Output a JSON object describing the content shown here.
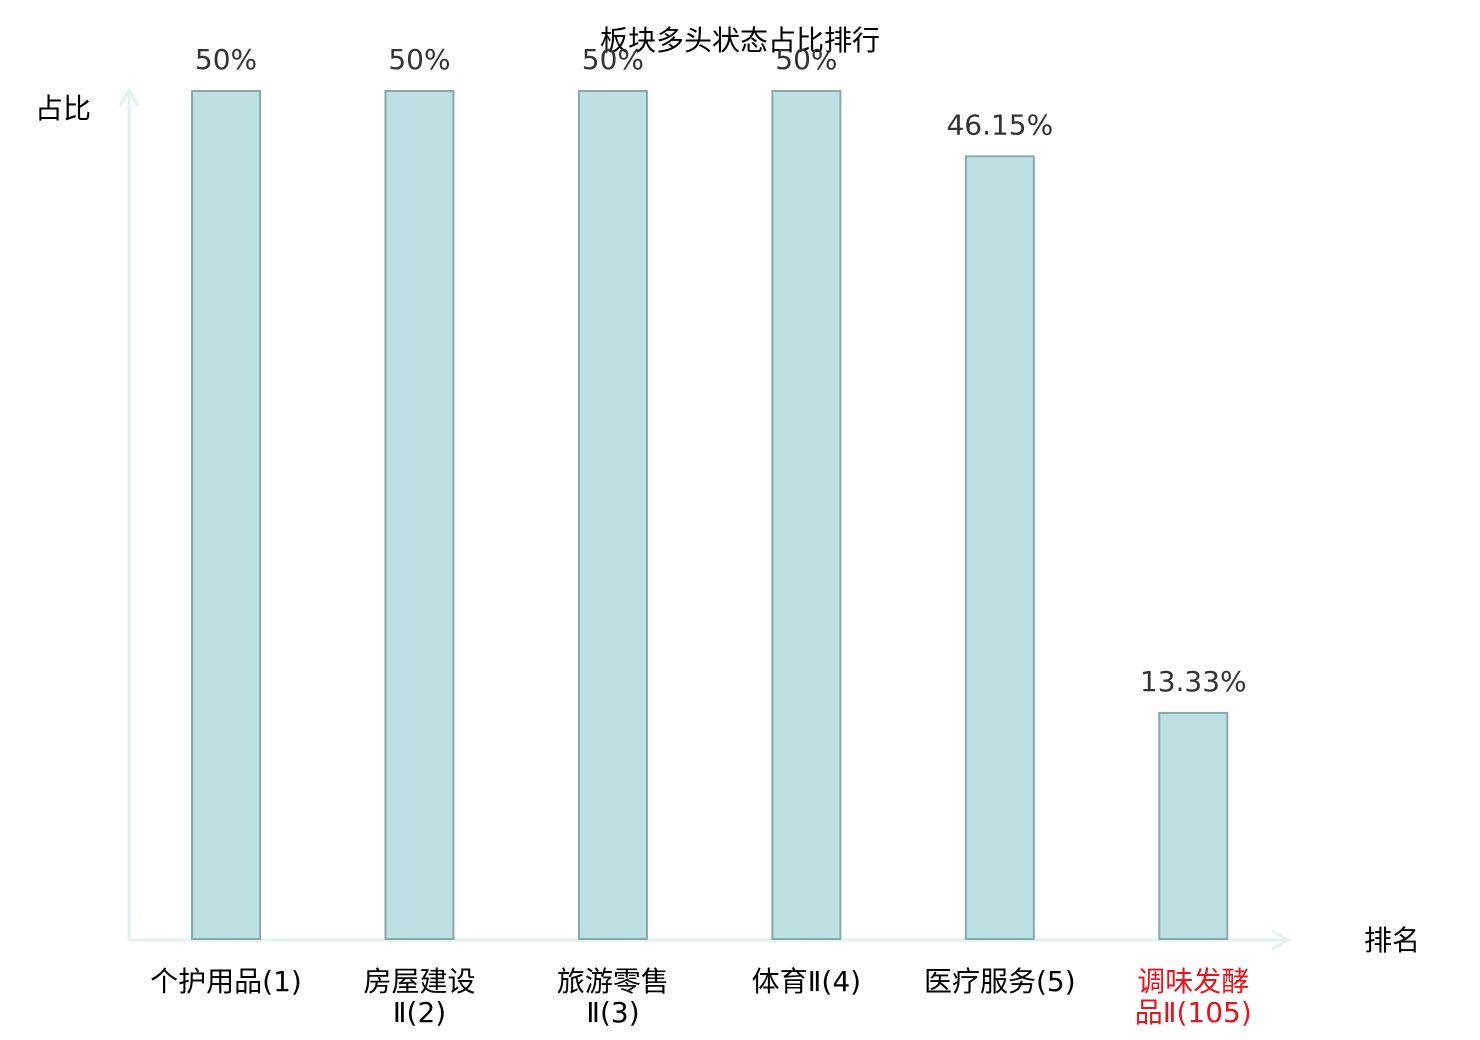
{
  "chart_data": {
    "type": "bar",
    "title": "板块多头状态占比排行",
    "y_label": "占比",
    "x_label": "排名",
    "categories": [
      "个护用品(1)",
      "房屋建设\nⅡ(2)",
      "旅游零售\nⅡ(3)",
      "体育Ⅱ(4)",
      "医疗服务(5)",
      "调味发酵\n品Ⅱ(105)"
    ],
    "category_colors": [
      "#000000",
      "#000000",
      "#000000",
      "#000000",
      "#000000",
      "#e8141b"
    ],
    "values": [
      50,
      50,
      50,
      50,
      46.15,
      13.33
    ],
    "value_labels": [
      "50%",
      "50%",
      "50%",
      "50%",
      "46.15%",
      "13.33%"
    ],
    "color": "#bde0e3",
    "ylim": [
      0,
      50
    ]
  }
}
